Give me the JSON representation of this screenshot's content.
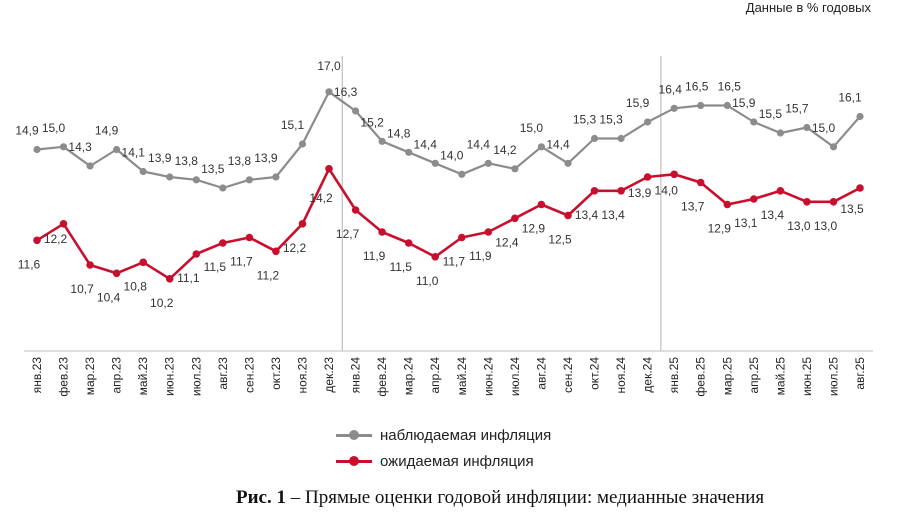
{
  "header": {
    "unit_note": "Данные в % годовых"
  },
  "caption": {
    "label": "Рис. 1",
    "text": " – Прямые оценки годовой инфляции: медианные значения"
  },
  "colors": {
    "observed": "#8c8c8c",
    "expected": "#c8102e",
    "divider": "#bfbfbf"
  },
  "chart_data": {
    "type": "line",
    "title": "",
    "categories": [
      "янв.23",
      "фев.23",
      "мар.23",
      "апр.23",
      "май.23",
      "июн.23",
      "июл.23",
      "авг.23",
      "сен.23",
      "окт.23",
      "ноя.23",
      "дек.23",
      "янв.24",
      "фев.24",
      "мар.24",
      "апр.24",
      "май.24",
      "июн.24",
      "июл.24",
      "авг.24",
      "сен.24",
      "окт.24",
      "ноя.24",
      "дек.24",
      "янв.25",
      "фев.25",
      "мар.25",
      "апр.25",
      "май.25",
      "июн.25",
      "июл.25",
      "авг.25"
    ],
    "series": [
      {
        "name": "наблюдаемая инфляция",
        "values": [
          14.9,
          15.0,
          14.3,
          14.9,
          14.1,
          13.9,
          13.8,
          13.5,
          13.8,
          13.9,
          15.1,
          17.0,
          16.3,
          15.2,
          14.8,
          14.4,
          14.0,
          14.4,
          14.2,
          15.0,
          14.4,
          15.3,
          15.3,
          15.9,
          16.4,
          16.5,
          16.5,
          15.9,
          15.5,
          15.7,
          15.0,
          16.1
        ]
      },
      {
        "name": "ожидаемая инфляция",
        "values": [
          11.6,
          12.2,
          10.7,
          10.4,
          10.8,
          10.2,
          11.1,
          11.5,
          11.7,
          11.2,
          12.2,
          14.2,
          12.7,
          11.9,
          11.5,
          11.0,
          11.7,
          11.9,
          12.4,
          12.9,
          12.5,
          13.4,
          13.4,
          13.9,
          14.0,
          13.7,
          12.9,
          13.1,
          13.4,
          13.0,
          13.0,
          13.5
        ]
      }
    ],
    "ylim": [
      7.5,
      18.3
    ],
    "year_dividers_after": [
      "дек.23",
      "дек.24"
    ],
    "legend_position": "bottom-center",
    "xlabel": "",
    "ylabel": ""
  }
}
